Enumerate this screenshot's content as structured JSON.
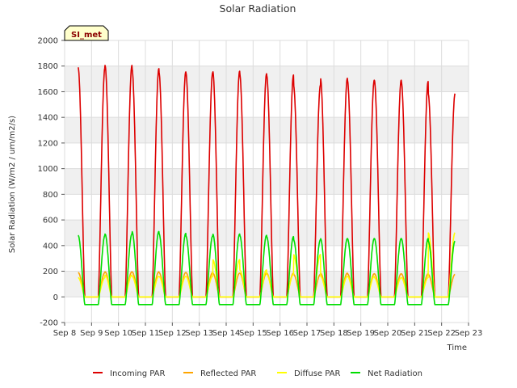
{
  "chart_data": {
    "type": "line",
    "title": "Solar Radiation",
    "xlabel": "Time",
    "ylabel": "Solar Radiation (W/m2 / um/m2/s)",
    "site_label": "SI_met",
    "x_ticks": [
      "Sep 8",
      "Sep 9",
      "Sep 10",
      "Sep 11",
      "Sep 12",
      "Sep 13",
      "Sep 14",
      "Sep 15",
      "Sep 16",
      "Sep 17",
      "Sep 18",
      "Sep 19",
      "Sep 20",
      "Sep 21",
      "Sep 22",
      "Sep 23"
    ],
    "x_range_days": [
      0,
      15
    ],
    "y_ticks": [
      -200,
      0,
      200,
      400,
      600,
      800,
      1000,
      1200,
      1400,
      1600,
      1800,
      2000
    ],
    "ylim": [
      -200,
      2000
    ],
    "grid": true,
    "legend_position": "bottom",
    "daylight": {
      "sunrise_frac": 0.25,
      "sunset_frac": 0.75
    },
    "day_start": 0.5,
    "series": [
      {
        "name": "Incoming PAR",
        "color": "#dd0000",
        "night_value": 0,
        "daily_peaks": [
          1790,
          1805,
          1780,
          1755,
          1750,
          1760,
          1740,
          1730,
          1650,
          1705,
          1690,
          1690,
          1680,
          1585
        ]
      },
      {
        "name": "Reflected PAR",
        "color": "#ffa500",
        "night_value": 0,
        "daily_peaks": [
          190,
          195,
          195,
          190,
          190,
          185,
          185,
          185,
          175,
          185,
          180,
          180,
          180,
          175
        ]
      },
      {
        "name": "Diffuse PAR",
        "color": "#ffff00",
        "night_value": 0,
        "daily_peaks": [
          150,
          170,
          160,
          160,
          160,
          290,
          210,
          175,
          330,
          160,
          160,
          150,
          150,
          500
        ]
      },
      {
        "name": "Net Radiation",
        "color": "#00dd00",
        "night_value": -60,
        "daily_peaks": [
          480,
          490,
          510,
          495,
          475,
          490,
          480,
          470,
          445,
          455,
          455,
          455,
          455,
          435
        ]
      }
    ]
  }
}
